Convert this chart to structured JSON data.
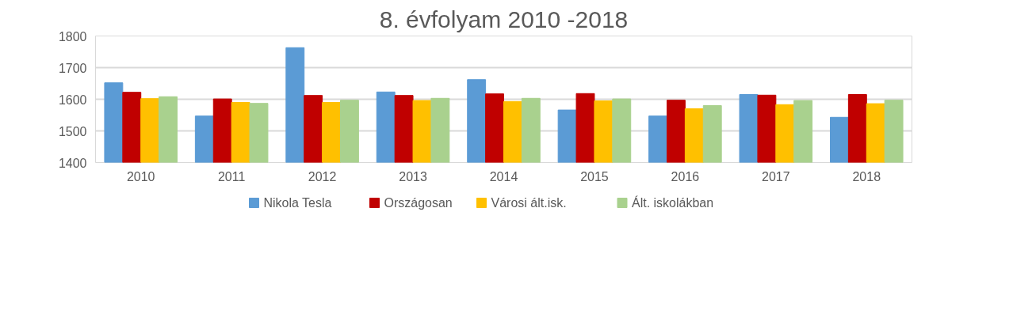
{
  "chart_data": {
    "type": "bar",
    "title": "8. évfolyam 2010 -2018",
    "categories": [
      "2010",
      "2011",
      "2012",
      "2013",
      "2014",
      "2015",
      "2016",
      "2017",
      "2018"
    ],
    "series": [
      {
        "name": "Nikola Tesla",
        "color": "#5b9bd5",
        "values": [
          1652,
          1547,
          1763,
          1623,
          1662,
          1566,
          1547,
          1615,
          1543
        ]
      },
      {
        "name": "Országosan",
        "color": "#c00000",
        "values": [
          1622,
          1601,
          1612,
          1612,
          1617,
          1618,
          1597,
          1613,
          1615
        ]
      },
      {
        "name": "Városi ált.isk.",
        "color": "#ffc000",
        "values": [
          1602,
          1590,
          1590,
          1596,
          1593,
          1595,
          1570,
          1583,
          1586
        ]
      },
      {
        "name": "Ált. iskolákban",
        "color": "#a9d18e",
        "values": [
          1608,
          1587,
          1597,
          1603,
          1603,
          1601,
          1580,
          1596,
          1597
        ]
      }
    ],
    "ylim": [
      1400,
      1800
    ],
    "yticks": [
      1400,
      1500,
      1600,
      1700,
      1800
    ],
    "grid": "y",
    "legend": "bottom"
  }
}
